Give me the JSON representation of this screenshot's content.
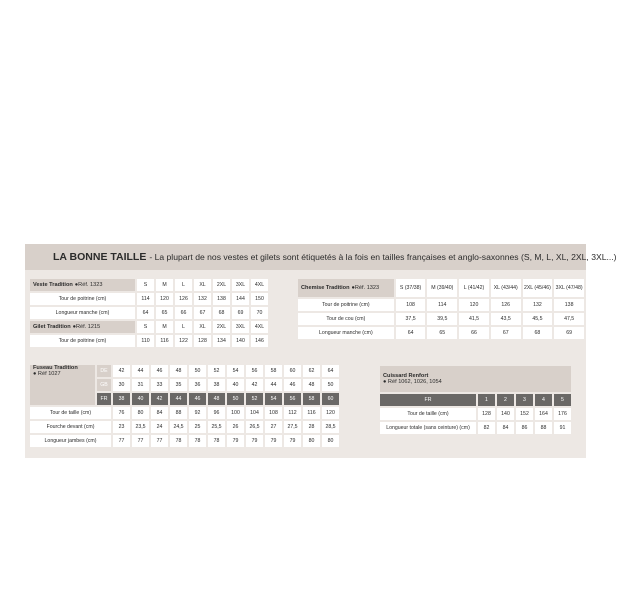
{
  "header": {
    "title": "LA BONNE TAILLE",
    "subtitle": "- La plupart de nos vestes et gilets sont étiquetés à la fois en tailles françaises et anglo-saxonnes (S, M, L, XL, 2XL, 3XL...)"
  },
  "veste": {
    "name": "Veste Tradition",
    "ref": "●Réf. 1323",
    "sizes": [
      "S",
      "M",
      "L",
      "XL",
      "2XL",
      "3XL",
      "4XL"
    ],
    "rows": [
      {
        "label": "Tour de poitrine (cm)",
        "values": [
          "114",
          "120",
          "126",
          "132",
          "138",
          "144",
          "150"
        ]
      },
      {
        "label": "Longueur manche (cm)",
        "values": [
          "64",
          "65",
          "66",
          "67",
          "68",
          "69",
          "70"
        ]
      }
    ]
  },
  "gilet": {
    "name": "Gilet Tradition",
    "ref": "●Réf. 1215",
    "sizes": [
      "S",
      "M",
      "L",
      "XL",
      "2XL",
      "3XL",
      "4XL"
    ],
    "rows": [
      {
        "label": "Tour de poitrine (cm)",
        "values": [
          "110",
          "116",
          "122",
          "128",
          "134",
          "140",
          "146"
        ]
      }
    ]
  },
  "chemise": {
    "name": "Chemise Tradition",
    "ref": "●Réf. 1323",
    "sizes": [
      "S (37/38)",
      "M (39/40)",
      "L (41/42)",
      "XL (43/44)",
      "2XL (45/46)",
      "3XL (47/48)"
    ],
    "rows": [
      {
        "label": "Tour de poitrine (cm)",
        "values": [
          "108",
          "114",
          "120",
          "126",
          "132",
          "138"
        ]
      },
      {
        "label": "Tour de cou (cm)",
        "values": [
          "37,5",
          "39,5",
          "41,5",
          "43,5",
          "45,5",
          "47,5"
        ]
      },
      {
        "label": "Longueur manche (cm)",
        "values": [
          "64",
          "65",
          "66",
          "67",
          "68",
          "69"
        ]
      }
    ]
  },
  "fuseau": {
    "name": "Fuseau Tradition",
    "ref": "● Réf 1027",
    "codes": [
      {
        "label": "DE",
        "values": [
          "42",
          "44",
          "46",
          "48",
          "50",
          "52",
          "54",
          "56",
          "58",
          "60",
          "62",
          "64"
        ]
      },
      {
        "label": "GB",
        "values": [
          "30",
          "31",
          "33",
          "35",
          "36",
          "38",
          "40",
          "42",
          "44",
          "46",
          "48",
          "50"
        ]
      },
      {
        "label": "FR",
        "values": [
          "38",
          "40",
          "42",
          "44",
          "46",
          "48",
          "50",
          "52",
          "54",
          "56",
          "58",
          "60"
        ]
      }
    ],
    "rows": [
      {
        "label": "Tour de taille (cm)",
        "values": [
          "76",
          "80",
          "84",
          "88",
          "92",
          "96",
          "100",
          "104",
          "108",
          "112",
          "116",
          "120"
        ]
      },
      {
        "label": "Fourche devant (cm)",
        "values": [
          "23",
          "23,5",
          "24",
          "24,5",
          "25",
          "25,5",
          "26",
          "26,5",
          "27",
          "27,5",
          "28",
          "28,5"
        ]
      },
      {
        "label": "Longueur jambes (cm)",
        "values": [
          "77",
          "77",
          "77",
          "78",
          "78",
          "78",
          "79",
          "79",
          "79",
          "79",
          "80",
          "80"
        ]
      }
    ]
  },
  "cuissard": {
    "name": "Cuissard Renfort",
    "ref": "● Réf 1062, 1026, 1054",
    "fr_label": "FR",
    "sizes": [
      "1",
      "2",
      "3",
      "4",
      "5"
    ],
    "rows": [
      {
        "label": "Tour de taille (cm)",
        "values": [
          "128",
          "140",
          "152",
          "164",
          "176"
        ]
      },
      {
        "label": "Longueur totale (sans ceinture) (cm)",
        "values": [
          "82",
          "84",
          "86",
          "88",
          "91"
        ]
      }
    ]
  }
}
